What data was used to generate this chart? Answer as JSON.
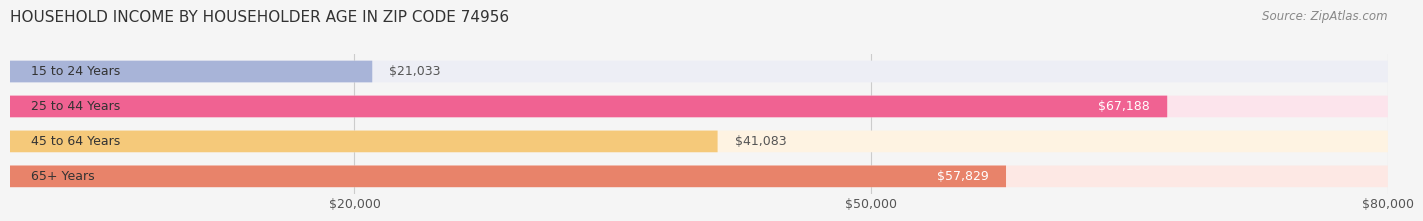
{
  "title": "HOUSEHOLD INCOME BY HOUSEHOLDER AGE IN ZIP CODE 74956",
  "source": "Source: ZipAtlas.com",
  "categories": [
    "15 to 24 Years",
    "25 to 44 Years",
    "45 to 64 Years",
    "65+ Years"
  ],
  "values": [
    21033,
    67188,
    41083,
    57829
  ],
  "bar_colors": [
    "#a8b4d8",
    "#f06292",
    "#f5c97a",
    "#e8836a"
  ],
  "bg_colors": [
    "#edeef5",
    "#fce4ec",
    "#fef3e2",
    "#fde8e4"
  ],
  "value_labels": [
    "$21,033",
    "$67,188",
    "$41,083",
    "$57,829"
  ],
  "value_inside": [
    false,
    true,
    false,
    true
  ],
  "xlim": [
    0,
    80000
  ],
  "xticks": [
    20000,
    50000,
    80000
  ],
  "xtick_labels": [
    "$20,000",
    "$50,000",
    "$80,000"
  ],
  "title_fontsize": 11,
  "source_fontsize": 8.5,
  "label_fontsize": 9,
  "value_fontsize": 9,
  "background_color": "#f5f5f5"
}
